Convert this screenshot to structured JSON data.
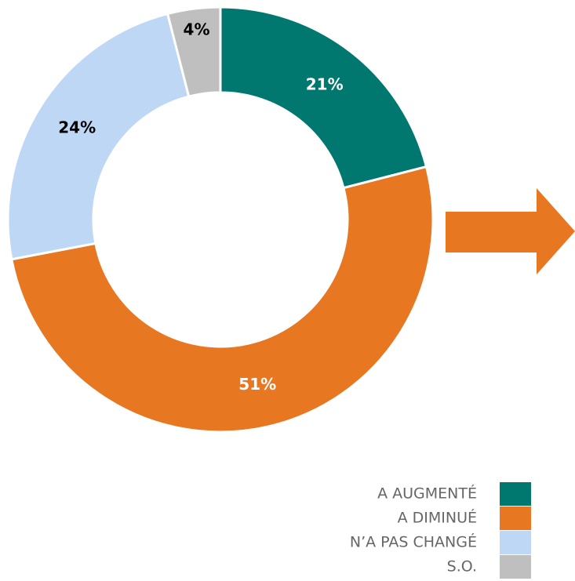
{
  "chart_data": {
    "type": "donut",
    "categories": [
      "A AUGMENTÉ",
      "A DIMINUÉ",
      "N’A PAS CHANGÉ",
      "S.O."
    ],
    "values": [
      21,
      51,
      24,
      4
    ],
    "value_labels": [
      "21%",
      "51%",
      "24%",
      "4%"
    ],
    "colors": [
      "#00786f",
      "#e87722",
      "#bdd7f5",
      "#bfbfbf"
    ],
    "legend": "bottom-right"
  }
}
